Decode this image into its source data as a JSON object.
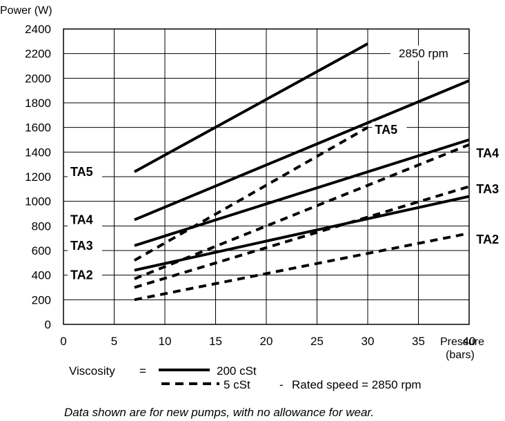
{
  "chart_data": {
    "type": "line",
    "ylabel": "Power (W)",
    "xlabel": "Pressure (bars)",
    "xlabel_line1": "Pressure",
    "xlabel_line2": "(bars)",
    "xlim": [
      0,
      40
    ],
    "ylim": [
      0,
      2400
    ],
    "xticks": [
      "0",
      "5",
      "10",
      "15",
      "20",
      "25",
      "30",
      "35",
      "40"
    ],
    "yticks": [
      "0",
      "200",
      "400",
      "600",
      "800",
      "1000",
      "1200",
      "1400",
      "1600",
      "1800",
      "2000",
      "2200",
      "2400"
    ],
    "grid": true,
    "speed_label": "2850 rpm",
    "series": [
      {
        "pump": "TA5",
        "viscosity": "200 cSt",
        "style": "solid",
        "x": [
          7,
          30
        ],
        "y": [
          1240,
          2280
        ]
      },
      {
        "pump": "TA4",
        "viscosity": "200 cSt",
        "style": "solid",
        "x": [
          7,
          40
        ],
        "y": [
          850,
          1980
        ]
      },
      {
        "pump": "TA3",
        "viscosity": "200 cSt",
        "style": "solid",
        "x": [
          7,
          40
        ],
        "y": [
          640,
          1500
        ]
      },
      {
        "pump": "TA2",
        "viscosity": "200 cSt",
        "style": "solid",
        "x": [
          7,
          40
        ],
        "y": [
          440,
          1040
        ]
      },
      {
        "pump": "TA5",
        "viscosity": "5 cSt",
        "style": "dashed",
        "x": [
          7,
          30
        ],
        "y": [
          520,
          1600
        ]
      },
      {
        "pump": "TA4",
        "viscosity": "5 cSt",
        "style": "dashed",
        "x": [
          7,
          40
        ],
        "y": [
          370,
          1460
        ]
      },
      {
        "pump": "TA3",
        "viscosity": "5 cSt",
        "style": "dashed",
        "x": [
          7,
          40
        ],
        "y": [
          300,
          1120
        ]
      },
      {
        "pump": "TA2",
        "viscosity": "5 cSt",
        "style": "dashed",
        "x": [
          7,
          40
        ],
        "y": [
          200,
          740
        ]
      }
    ],
    "left_labels": [
      "TA5",
      "TA4",
      "TA3",
      "TA2"
    ],
    "right_labels": [
      "TA5",
      "TA4",
      "TA3",
      "TA2"
    ],
    "legend": {
      "viscosity_label": "Viscosity",
      "equals": "=",
      "solid_label": "200 cSt",
      "dashed_label": "5 cSt",
      "dash": "-",
      "rated_speed": "Rated speed = 2850 rpm"
    },
    "footnote": "Data shown are for new pumps, with no allowance for wear."
  }
}
